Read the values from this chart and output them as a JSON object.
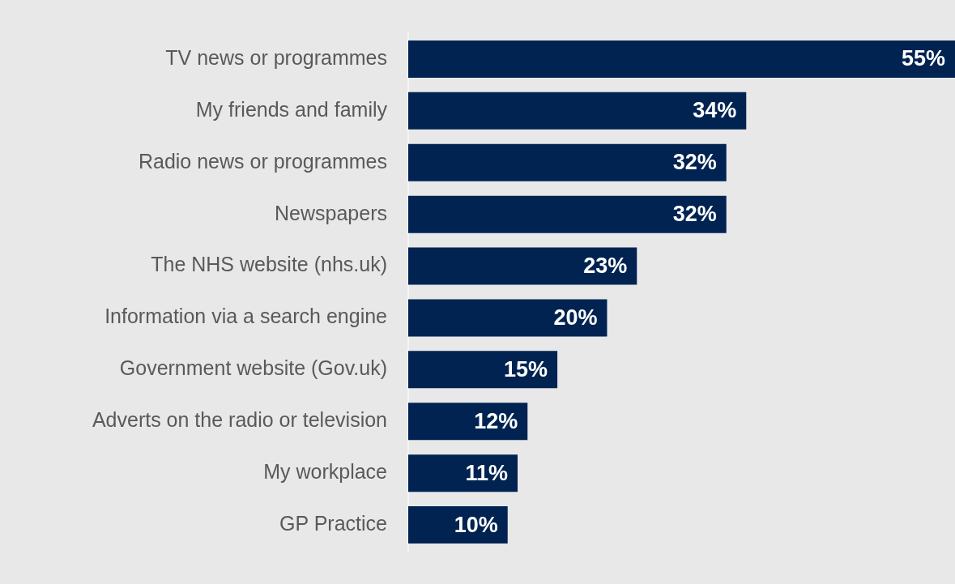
{
  "chart_data": {
    "type": "bar",
    "orientation": "horizontal",
    "categories": [
      "TV news or programmes",
      "My friends and family",
      "Radio news or programmes",
      "Newspapers",
      "The NHS website (nhs.uk)",
      "Information via a search engine",
      "Government website (Gov.uk)",
      "Adverts on the radio or television",
      "My workplace",
      "GP Practice"
    ],
    "values": [
      55,
      34,
      32,
      32,
      23,
      20,
      15,
      12,
      11,
      10
    ],
    "value_labels": [
      "55%",
      "34%",
      "32%",
      "32%",
      "23%",
      "20%",
      "15%",
      "12%",
      "11%",
      "10%"
    ],
    "color": "#002352",
    "xlim": [
      0,
      55
    ],
    "legend": false
  }
}
